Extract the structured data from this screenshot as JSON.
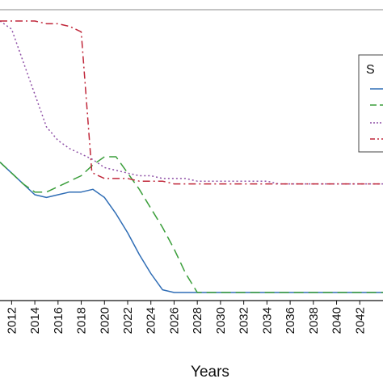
{
  "chart_data": {
    "type": "line",
    "title": "",
    "xlabel": "Years",
    "ylabel": "",
    "x_tick_labels": [
      "2012",
      "2014",
      "2016",
      "2018",
      "2020",
      "2022",
      "2024",
      "2026",
      "2028",
      "2030",
      "2032",
      "2034",
      "2036",
      "2038",
      "2040",
      "2042"
    ],
    "xlim": [
      2011,
      2044
    ],
    "ylim": [
      0,
      1
    ],
    "legend": {
      "placement": "top-right",
      "title": "S",
      "entries": [
        "",
        "",
        "",
        ""
      ]
    },
    "colors": {
      "blue": "#2f6db5",
      "green": "#3a9e3a",
      "purple": "#8e4fa6",
      "red": "#c0273a",
      "axis": "#111111",
      "frame": "#888888"
    },
    "series": [
      {
        "color": "#2f6db5",
        "dash": "solid",
        "x": [
          2011,
          2012,
          2013,
          2014,
          2015,
          2016,
          2017,
          2018,
          2019,
          2020,
          2021,
          2022,
          2023,
          2024,
          2025,
          2026,
          2027,
          2028,
          2044
        ],
        "y": [
          0.48,
          0.44,
          0.4,
          0.36,
          0.35,
          0.36,
          0.37,
          0.37,
          0.38,
          0.35,
          0.29,
          0.22,
          0.14,
          0.07,
          0.01,
          0.0,
          0.0,
          0.0,
          0.0
        ]
      },
      {
        "color": "#3a9e3a",
        "dash": "long-dash",
        "x": [
          2011,
          2012,
          2013,
          2014,
          2015,
          2016,
          2017,
          2018,
          2019,
          2020,
          2021,
          2022,
          2023,
          2024,
          2025,
          2026,
          2027,
          2028,
          2044
        ],
        "y": [
          0.48,
          0.44,
          0.4,
          0.37,
          0.37,
          0.39,
          0.41,
          0.43,
          0.47,
          0.5,
          0.5,
          0.44,
          0.38,
          0.31,
          0.24,
          0.16,
          0.07,
          0.0,
          0.0
        ]
      },
      {
        "color": "#8e4fa6",
        "dash": "dotted",
        "x": [
          2011,
          2012,
          2013,
          2014,
          2015,
          2016,
          2017,
          2018,
          2019,
          2020,
          2021,
          2022,
          2023,
          2024,
          2025,
          2026,
          2027,
          2028,
          2030,
          2034,
          2035,
          2044
        ],
        "y": [
          1.0,
          0.97,
          0.85,
          0.73,
          0.61,
          0.56,
          0.53,
          0.51,
          0.49,
          0.46,
          0.45,
          0.44,
          0.43,
          0.43,
          0.42,
          0.42,
          0.42,
          0.41,
          0.41,
          0.41,
          0.4,
          0.4
        ]
      },
      {
        "color": "#c0273a",
        "dash": "dash-dot",
        "x": [
          2011,
          2012,
          2013,
          2014,
          2015,
          2016,
          2017,
          2018,
          2018.9,
          2019,
          2020,
          2021,
          2022,
          2023,
          2024,
          2025,
          2026,
          2044
        ],
        "y": [
          1.0,
          1.0,
          1.0,
          1.0,
          0.99,
          0.99,
          0.98,
          0.96,
          0.45,
          0.44,
          0.42,
          0.42,
          0.42,
          0.41,
          0.41,
          0.41,
          0.4,
          0.4
        ]
      }
    ]
  }
}
